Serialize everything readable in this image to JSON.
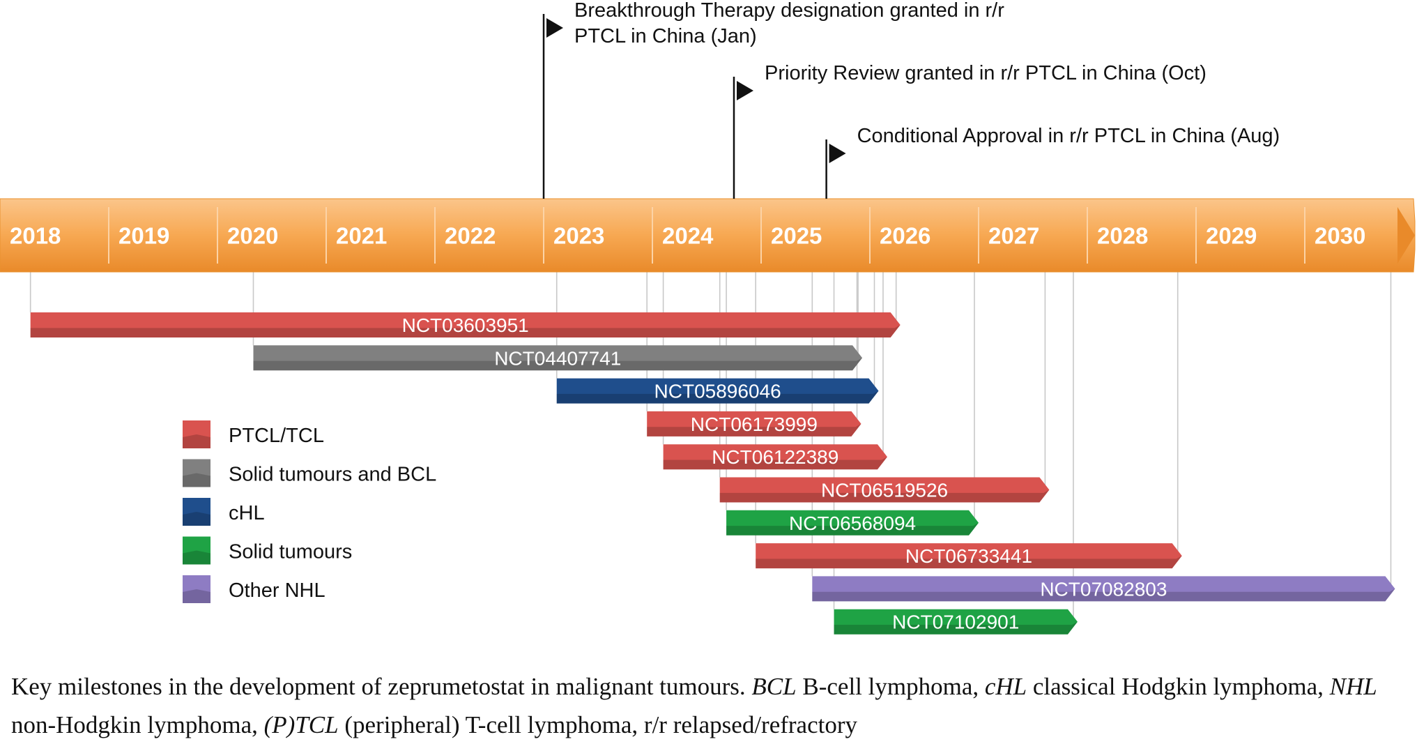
{
  "timeline": {
    "years": [
      "2018",
      "2019",
      "2020",
      "2021",
      "2022",
      "2023",
      "2024",
      "2025",
      "2026",
      "2027",
      "2028",
      "2029",
      "2030"
    ],
    "bar_color": "#F7A852",
    "label_color": "#ffffff"
  },
  "milestones": [
    {
      "lines": [
        "Breakthrough Therapy designation granted in r/r",
        "PTCL in China (Jan)"
      ],
      "year": 2023.0
    },
    {
      "lines": [
        "Priority Review granted in r/r PTCL in China (Oct)"
      ],
      "year": 2024.75
    },
    {
      "lines": [
        "Conditional Approval in r/r PTCL in China (Aug)"
      ],
      "year": 2025.6
    }
  ],
  "trials": [
    {
      "id": "NCT03603951",
      "start": 2018.28,
      "end": 2026.28,
      "category": "PTCL/TCL"
    },
    {
      "id": "NCT04407741",
      "start": 2020.33,
      "end": 2025.93,
      "category": "Solid tumours and BCL"
    },
    {
      "id": "NCT05896046",
      "start": 2023.12,
      "end": 2026.08,
      "category": "cHL"
    },
    {
      "id": "NCT06173999",
      "start": 2023.95,
      "end": 2025.92,
      "category": "PTCL/TCL"
    },
    {
      "id": "NCT06122389",
      "start": 2024.1,
      "end": 2026.16,
      "category": "PTCL/TCL"
    },
    {
      "id": "NCT06519526",
      "start": 2024.62,
      "end": 2027.65,
      "category": "PTCL/TCL"
    },
    {
      "id": "NCT06568094",
      "start": 2024.68,
      "end": 2027.0,
      "category": "Solid tumours"
    },
    {
      "id": "NCT06733441",
      "start": 2024.95,
      "end": 2028.87,
      "category": "PTCL/TCL"
    },
    {
      "id": "NCT07082803",
      "start": 2025.47,
      "end": 2030.83,
      "category": "Other NHL"
    },
    {
      "id": "NCT07102901",
      "start": 2025.67,
      "end": 2027.91,
      "category": "Solid tumours"
    }
  ],
  "legend": [
    {
      "label": "PTCL/TCL",
      "color": "#D9534F"
    },
    {
      "label": "Solid tumours and BCL",
      "color": "#808080"
    },
    {
      "label": "cHL",
      "color": "#1F4E8C"
    },
    {
      "label": "Solid tumours",
      "color": "#1FA345"
    },
    {
      "label": "Other NHL",
      "color": "#8E7CC3"
    }
  ],
  "caption": {
    "text1": "Key milestones in the development of zeprumetostat in malignant tumours. ",
    "abbr1": "BCL",
    "text2": " B-cell lymphoma, ",
    "abbr2": "cHL",
    "text3": " classical Hodgkin lymphoma, ",
    "abbr3": "NHL",
    "text4": " non-Hodgkin lymphoma, ",
    "abbr4": "(P)TCL",
    "text5": " (peripheral) T-cell lymphoma, r/r relapsed/refractory"
  }
}
